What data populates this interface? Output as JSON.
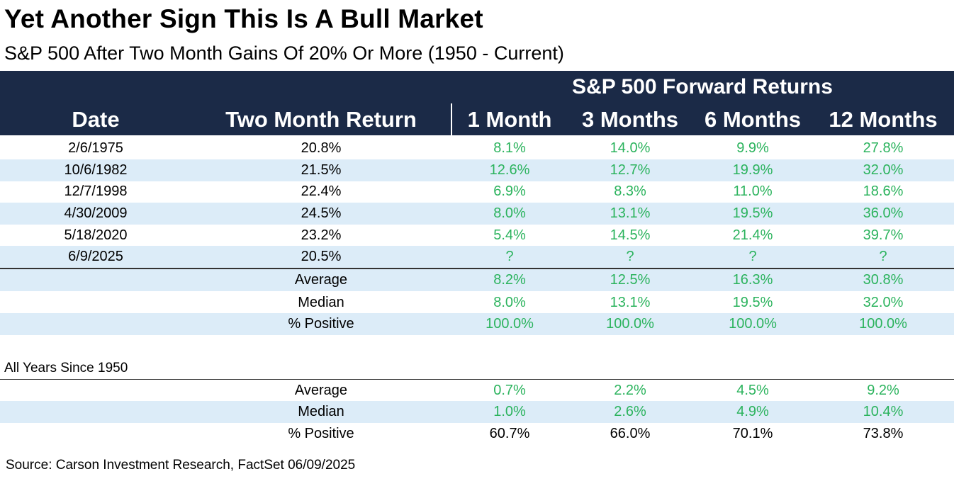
{
  "title": "Yet Another Sign This Is A Bull Market",
  "subtitle": "S&P 500 After Two Month Gains Of 20% Or More (1950 - Current)",
  "chart_data": {
    "type": "table",
    "group_header": "S&P 500 Forward Returns",
    "columns": [
      "Date",
      "Two Month Return",
      "1 Month",
      "3 Months",
      "6 Months",
      "12 Months"
    ],
    "rows": [
      [
        "2/6/1975",
        "20.8%",
        "8.1%",
        "14.0%",
        "9.9%",
        "27.8%"
      ],
      [
        "10/6/1982",
        "21.5%",
        "12.6%",
        "12.7%",
        "19.9%",
        "32.0%"
      ],
      [
        "12/7/1998",
        "22.4%",
        "6.9%",
        "8.3%",
        "11.0%",
        "18.6%"
      ],
      [
        "4/30/2009",
        "24.5%",
        "8.0%",
        "13.1%",
        "19.5%",
        "36.0%"
      ],
      [
        "5/18/2020",
        "23.2%",
        "5.4%",
        "14.5%",
        "21.4%",
        "39.7%"
      ],
      [
        "6/9/2025",
        "20.5%",
        "?",
        "?",
        "?",
        "?"
      ]
    ],
    "summary": [
      [
        "Average",
        "8.2%",
        "12.5%",
        "16.3%",
        "30.8%"
      ],
      [
        "Median",
        "8.0%",
        "13.1%",
        "19.5%",
        "32.0%"
      ],
      [
        "% Positive",
        "100.0%",
        "100.0%",
        "100.0%",
        "100.0%"
      ]
    ],
    "all_years_label": "All Years Since 1950",
    "all_years": [
      [
        "Average",
        "0.7%",
        "2.2%",
        "4.5%",
        "9.2%"
      ],
      [
        "Median",
        "1.0%",
        "2.6%",
        "4.9%",
        "10.4%"
      ],
      [
        "% Positive",
        "60.7%",
        "66.0%",
        "70.1%",
        "73.8%"
      ]
    ]
  },
  "colors": {
    "header_bg": "#1b2a47",
    "row_shade": "#dcecf8",
    "positive_green": "#2bb35d"
  },
  "source": "Source: Carson Investment Research, FactSet 06/09/2025"
}
